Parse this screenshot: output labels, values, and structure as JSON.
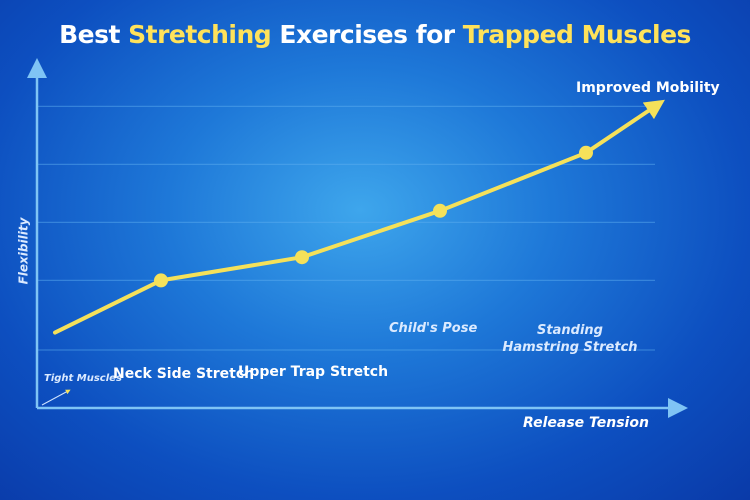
{
  "title": {
    "part1": "Best ",
    "part2": "Stretching",
    "part3": " Exercises for ",
    "part4": "Trapped Muscles"
  },
  "colors": {
    "line": "#f5e15a",
    "axis": "#7fc4f5",
    "highlight": "#ffe25a",
    "grid": "#5fb0f0"
  },
  "chart_data": {
    "type": "line",
    "title": "Best Stretching Exercises for Trapped Muscles",
    "xlabel": "Release Tension",
    "ylabel": "Flexibility",
    "grid": true,
    "ylim": [
      0,
      6
    ],
    "start_label": "Tight Muscles",
    "end_label": "Improved Mobility",
    "categories": [
      "Neck Side Stretch",
      "Upper Trap Stretch",
      "Child's Pose",
      "Standing Hamstring Stretch"
    ],
    "series": [
      {
        "values": [
          2.2,
          2.6,
          3.4,
          4.4
        ]
      }
    ],
    "start_value": 1.3,
    "end_value": 5.2,
    "gridlines": [
      1,
      2.2,
      3.2,
      4.2,
      5.2
    ]
  }
}
